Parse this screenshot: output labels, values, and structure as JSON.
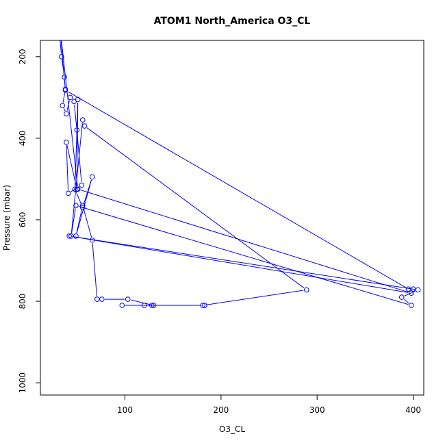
{
  "chart_data": {
    "type": "line",
    "title": "ATOM1 North_America O3_CL",
    "xlabel": "O3_CL",
    "ylabel": "Pressure (mbar)",
    "xlim": [
      12,
      411
    ],
    "ylim": [
      1030,
      160
    ],
    "y_reversed": true,
    "xticks": [
      100,
      200,
      300,
      400
    ],
    "yticks": [
      200,
      400,
      600,
      800,
      1000
    ],
    "grid": false,
    "color": "#0000ff",
    "series": [
      {
        "x": [
          31,
          34,
          37,
          38,
          35,
          39,
          43,
          47,
          50,
          55,
          41,
          39,
          50,
          51,
          48,
          56,
          66,
          49,
          56,
          66,
          71,
          76,
          103,
          130,
          183,
          128,
          97,
          120,
          181,
          289,
          58,
          56,
          44,
          49,
          398,
          388,
          405,
          42,
          398,
          51,
          32,
          38,
          395,
          400
        ],
        "y": [
          120,
          200,
          250,
          280,
          320,
          340,
          300,
          310,
          380,
          515,
          535,
          410,
          525,
          305,
          525,
          570,
          495,
          640,
          565,
          650,
          795,
          795,
          795,
          810,
          810,
          810,
          810,
          810,
          810,
          772,
          370,
          355,
          640,
          565,
          810,
          790,
          772,
          640,
          780,
          525,
          120,
          282,
          770,
          770
        ]
      }
    ]
  }
}
